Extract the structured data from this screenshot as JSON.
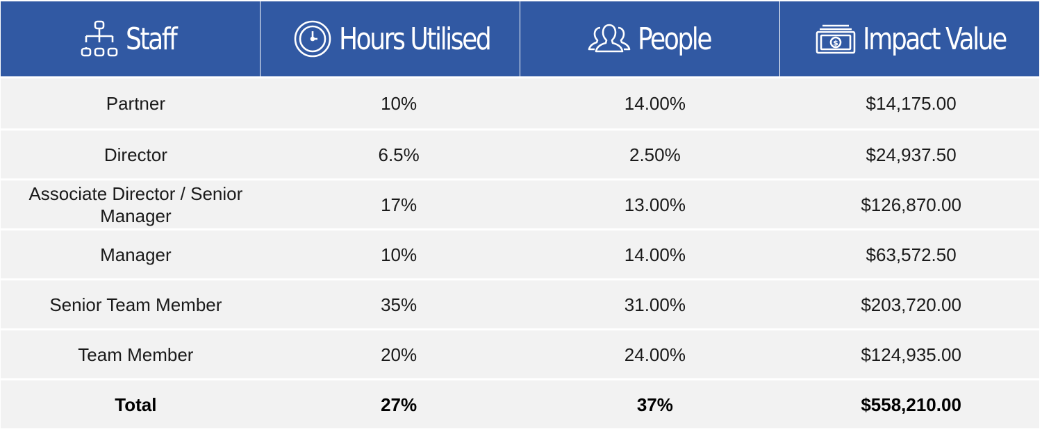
{
  "header": {
    "columns": [
      {
        "label": "Staff",
        "icon": "org-chart-icon"
      },
      {
        "label": "Hours Utilised",
        "icon": "clock-icon"
      },
      {
        "label": "People",
        "icon": "people-icon"
      },
      {
        "label": "Impact Value",
        "icon": "money-icon"
      }
    ]
  },
  "rows": [
    {
      "staff": "Partner",
      "hours": "10%",
      "people": "14.00%",
      "impact": "$14,175.00"
    },
    {
      "staff": "Director",
      "hours": "6.5%",
      "people": "2.50%",
      "impact": "$24,937.50"
    },
    {
      "staff": "Associate Director / Senior Manager",
      "hours": "17%",
      "people": "13.00%",
      "impact": "$126,870.00"
    },
    {
      "staff": "Manager",
      "hours": "10%",
      "people": "14.00%",
      "impact": "$63,572.50"
    },
    {
      "staff": "Senior Team Member",
      "hours": "35%",
      "people": "31.00%",
      "impact": "$203,720.00"
    },
    {
      "staff": "Team Member",
      "hours": "20%",
      "people": "24.00%",
      "impact": "$124,935.00"
    }
  ],
  "total": {
    "staff": "Total",
    "hours": "27%",
    "people": "37%",
    "impact": "$558,210.00"
  },
  "colors": {
    "header_bg": "#3159a3",
    "row_bg": "#f2f2f2",
    "divider": "#ffffff"
  }
}
